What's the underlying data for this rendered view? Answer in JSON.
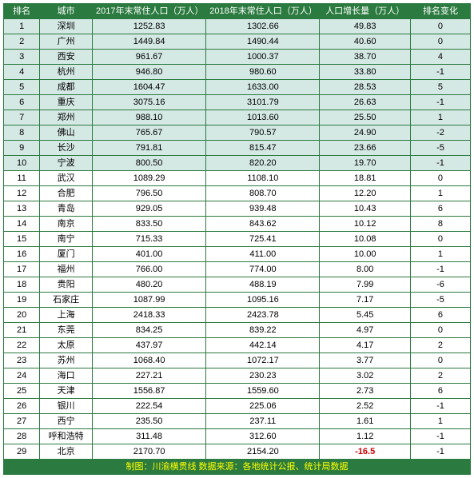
{
  "columns": [
    {
      "key": "rank",
      "label": "排名",
      "class": "col-rank"
    },
    {
      "key": "city",
      "label": "城市",
      "class": "col-city"
    },
    {
      "key": "p2017",
      "label": "2017年末常住人口（万人）",
      "class": "col-2017"
    },
    {
      "key": "p2018",
      "label": "2018年末常住人口（万人）",
      "class": "col-2018"
    },
    {
      "key": "growth",
      "label": "人口增长量（万人）",
      "class": "col-grow"
    },
    {
      "key": "change",
      "label": "排名变化",
      "class": "col-chg"
    }
  ],
  "rows": [
    {
      "rank": "1",
      "city": "深圳",
      "p2017": "1252.83",
      "p2018": "1302.66",
      "growth": "49.83",
      "change": "0",
      "hl": true
    },
    {
      "rank": "2",
      "city": "广州",
      "p2017": "1449.84",
      "p2018": "1490.44",
      "growth": "40.60",
      "change": "0",
      "hl": true
    },
    {
      "rank": "3",
      "city": "西安",
      "p2017": "961.67",
      "p2018": "1000.37",
      "growth": "38.70",
      "change": "4",
      "hl": true
    },
    {
      "rank": "4",
      "city": "杭州",
      "p2017": "946.80",
      "p2018": "980.60",
      "growth": "33.80",
      "change": "-1",
      "hl": true
    },
    {
      "rank": "5",
      "city": "成都",
      "p2017": "1604.47",
      "p2018": "1633.00",
      "growth": "28.53",
      "change": "5",
      "hl": true
    },
    {
      "rank": "6",
      "city": "重庆",
      "p2017": "3075.16",
      "p2018": "3101.79",
      "growth": "26.63",
      "change": "-1",
      "hl": true
    },
    {
      "rank": "7",
      "city": "郑州",
      "p2017": "988.10",
      "p2018": "1013.60",
      "growth": "25.50",
      "change": "1",
      "hl": true
    },
    {
      "rank": "8",
      "city": "佛山",
      "p2017": "765.67",
      "p2018": "790.57",
      "growth": "24.90",
      "change": "-2",
      "hl": true
    },
    {
      "rank": "9",
      "city": "长沙",
      "p2017": "791.81",
      "p2018": "815.47",
      "growth": "23.66",
      "change": "-5",
      "hl": true
    },
    {
      "rank": "10",
      "city": "宁波",
      "p2017": "800.50",
      "p2018": "820.20",
      "growth": "19.70",
      "change": "-1",
      "hl": true
    },
    {
      "rank": "11",
      "city": "武汉",
      "p2017": "1089.29",
      "p2018": "1108.10",
      "growth": "18.81",
      "change": "0"
    },
    {
      "rank": "12",
      "city": "合肥",
      "p2017": "796.50",
      "p2018": "808.70",
      "growth": "12.20",
      "change": "1"
    },
    {
      "rank": "13",
      "city": "青岛",
      "p2017": "929.05",
      "p2018": "939.48",
      "growth": "10.43",
      "change": "6"
    },
    {
      "rank": "14",
      "city": "南京",
      "p2017": "833.50",
      "p2018": "843.62",
      "growth": "10.12",
      "change": "8"
    },
    {
      "rank": "15",
      "city": "南宁",
      "p2017": "715.33",
      "p2018": "725.41",
      "growth": "10.08",
      "change": "0"
    },
    {
      "rank": "16",
      "city": "厦门",
      "p2017": "401.00",
      "p2018": "411.00",
      "growth": "10.00",
      "change": "1"
    },
    {
      "rank": "17",
      "city": "福州",
      "p2017": "766.00",
      "p2018": "774.00",
      "growth": "8.00",
      "change": "-1"
    },
    {
      "rank": "18",
      "city": "贵阳",
      "p2017": "480.20",
      "p2018": "488.19",
      "growth": "7.99",
      "change": "-6"
    },
    {
      "rank": "19",
      "city": "石家庄",
      "p2017": "1087.99",
      "p2018": "1095.16",
      "growth": "7.17",
      "change": "-5"
    },
    {
      "rank": "20",
      "city": "上海",
      "p2017": "2418.33",
      "p2018": "2423.78",
      "growth": "5.45",
      "change": "6"
    },
    {
      "rank": "21",
      "city": "东莞",
      "p2017": "834.25",
      "p2018": "839.22",
      "growth": "4.97",
      "change": "0"
    },
    {
      "rank": "22",
      "city": "太原",
      "p2017": "437.97",
      "p2018": "442.14",
      "growth": "4.17",
      "change": "2"
    },
    {
      "rank": "23",
      "city": "苏州",
      "p2017": "1068.40",
      "p2018": "1072.17",
      "growth": "3.77",
      "change": "0"
    },
    {
      "rank": "24",
      "city": "海口",
      "p2017": "227.21",
      "p2018": "230.23",
      "growth": "3.02",
      "change": "2"
    },
    {
      "rank": "25",
      "city": "天津",
      "p2017": "1556.87",
      "p2018": "1559.60",
      "growth": "2.73",
      "change": "6"
    },
    {
      "rank": "26",
      "city": "银川",
      "p2017": "222.54",
      "p2018": "225.06",
      "growth": "2.52",
      "change": "-1"
    },
    {
      "rank": "27",
      "city": "西宁",
      "p2017": "235.50",
      "p2018": "237.11",
      "growth": "1.61",
      "change": "1"
    },
    {
      "rank": "28",
      "city": "呼和浩特",
      "p2017": "311.48",
      "p2018": "312.60",
      "growth": "1.12",
      "change": "-1"
    },
    {
      "rank": "29",
      "city": "北京",
      "p2017": "2170.70",
      "p2018": "2154.20",
      "growth": "-16.5",
      "change": "-1",
      "neg_growth": true
    }
  ],
  "footer": "制图：川渝横贯线 数据来源：各地统计公报、统计局数据",
  "colors": {
    "header_bg": "#2b7a3f",
    "header_fg": "#ffffff",
    "highlight_bg": "#d4e8e4",
    "negative_fg": "#d00000",
    "footer_fg": "#ffff00",
    "border": "#2b7a3f"
  }
}
